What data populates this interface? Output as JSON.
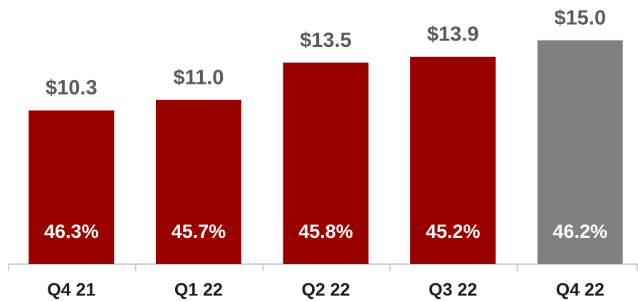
{
  "chart_data": {
    "type": "bar",
    "categories": [
      "Q4 21",
      "Q1 22",
      "Q2 22",
      "Q3 22",
      "Q4 22"
    ],
    "values": [
      10.3,
      11.0,
      13.5,
      13.9,
      15.0
    ],
    "value_labels": [
      "$10.3",
      "$11.0",
      "$13.5",
      "$13.9",
      "$15.0"
    ],
    "margins": [
      46.3,
      45.7,
      45.8,
      45.2,
      46.2
    ],
    "margin_labels": [
      "46.3%",
      "45.7%",
      "45.8%",
      "45.2%",
      "46.2%"
    ],
    "colors": [
      "#990000",
      "#990000",
      "#990000",
      "#990000",
      "#808080"
    ],
    "ylim": [
      0,
      17.7
    ]
  }
}
